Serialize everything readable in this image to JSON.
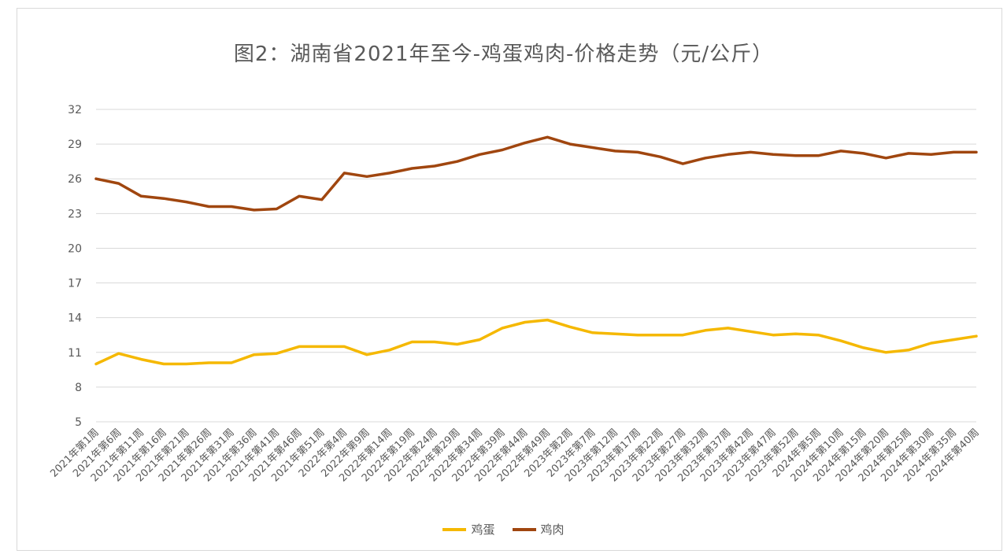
{
  "chart_data": {
    "type": "line",
    "title": "图2：湖南省2021年至今-鸡蛋鸡肉-价格走势（元/公斤）",
    "ylim": [
      5,
      32
    ],
    "yticks": [
      5,
      8,
      11,
      14,
      17,
      20,
      23,
      26,
      29,
      32
    ],
    "grid": true,
    "legend_position": "bottom",
    "categories": [
      "2021年第1周",
      "2021年第6周",
      "2021年第11周",
      "2021年第16周",
      "2021年第21周",
      "2021年第26周",
      "2021年第31周",
      "2021年第36周",
      "2021年第41周",
      "2021年第46周",
      "2021年第51周",
      "2022年第4周",
      "2022年第9周",
      "2022年第14周",
      "2022年第19周",
      "2022年第24周",
      "2022年第29周",
      "2022年第34周",
      "2022年第39周",
      "2022年第44周",
      "2022年第49周",
      "2023年第2周",
      "2023年第7周",
      "2023年第12周",
      "2023年第17周",
      "2023年第22周",
      "2023年第27周",
      "2023年第32周",
      "2023年第37周",
      "2023年第42周",
      "2023年第47周",
      "2023年第52周",
      "2024年第5周",
      "2024年第10周",
      "2024年第15周",
      "2024年第20周",
      "2024年第25周",
      "2024年第30周",
      "2024年第35周",
      "2024年第40周"
    ],
    "series": [
      {
        "name": "鸡蛋",
        "color": "#F5B800",
        "values": [
          10.0,
          10.9,
          10.4,
          10.0,
          10.0,
          10.1,
          10.1,
          10.8,
          10.9,
          11.5,
          11.5,
          11.5,
          10.8,
          11.2,
          11.9,
          11.9,
          11.7,
          12.1,
          13.1,
          13.6,
          13.8,
          13.2,
          12.7,
          12.6,
          12.5,
          12.5,
          12.5,
          12.9,
          13.1,
          12.8,
          12.5,
          12.6,
          12.5,
          12.0,
          11.4,
          11.0,
          11.2,
          11.8,
          12.1,
          12.4
        ]
      },
      {
        "name": "鸡肉",
        "color": "#A0460F",
        "values": [
          26.0,
          25.6,
          24.5,
          24.3,
          24.0,
          23.6,
          23.6,
          23.3,
          23.4,
          24.5,
          24.2,
          26.5,
          26.2,
          26.5,
          26.9,
          27.1,
          27.5,
          28.1,
          28.5,
          29.1,
          29.6,
          29.0,
          28.7,
          28.4,
          28.3,
          27.9,
          27.3,
          27.8,
          28.1,
          28.3,
          28.1,
          28.0,
          28.0,
          28.4,
          28.2,
          27.8,
          28.2,
          28.1,
          28.3,
          28.3
        ]
      }
    ]
  }
}
